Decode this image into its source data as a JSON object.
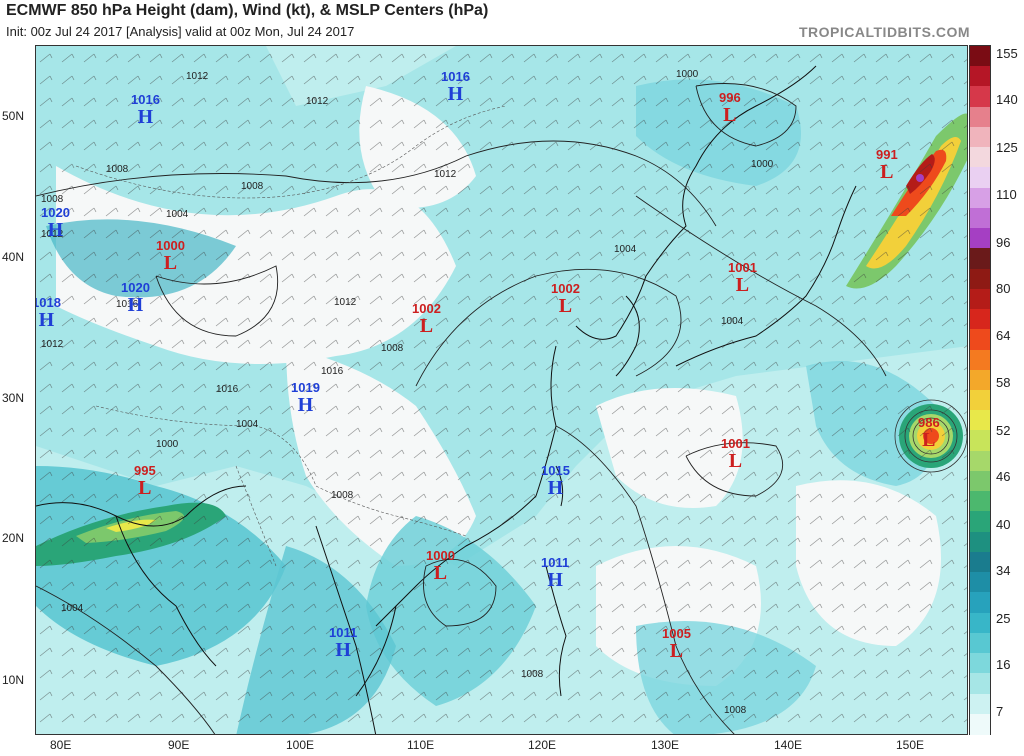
{
  "header": {
    "title": "ECMWF 850 hPa Height (dam), Wind (kt), & MSLP Centers (hPa)",
    "subtitle": "Init: 00z Jul 24 2017   [Analysis]   valid at 00z Mon, Jul 24 2017",
    "brand": "TROPICALTIDBITS.COM"
  },
  "axes": {
    "lat_labels": [
      "50N",
      "40N",
      "30N",
      "20N",
      "10N"
    ],
    "lon_labels": [
      "80E",
      "90E",
      "100E",
      "110E",
      "120E",
      "130E",
      "140E",
      "150E"
    ]
  },
  "colorbar": {
    "labels": [
      "155",
      "140",
      "125",
      "110",
      "96",
      "80",
      "64",
      "58",
      "52",
      "46",
      "40",
      "34",
      "25",
      "16",
      "7"
    ],
    "colors": [
      "#7a0c14",
      "#b51626",
      "#d6384a",
      "#e6808c",
      "#f0b4bc",
      "#f3d8de",
      "#ead0f2",
      "#d7a0e6",
      "#c06fd6",
      "#a53fc3",
      "#6a1a1a",
      "#8e1a14",
      "#b41c18",
      "#d7261c",
      "#ee4a1c",
      "#f47a20",
      "#f3a82a",
      "#f2d03a",
      "#e8e84a",
      "#c8e45a",
      "#a6d86a",
      "#7cc86c",
      "#4cb86e",
      "#2aa578",
      "#1e9080",
      "#1a7c8e",
      "#1e8ea6",
      "#27a2bc",
      "#38b6c8",
      "#58c8d2",
      "#7dd8dc",
      "#a6e6e6",
      "#cdf2f2",
      "#eefafa"
    ]
  },
  "centers": [
    {
      "type": "H",
      "value": "1016"
    },
    {
      "type": "H",
      "value": "1016"
    },
    {
      "type": "H",
      "value": "1020"
    },
    {
      "type": "H",
      "value": "1020"
    },
    {
      "type": "H",
      "value": "1018"
    },
    {
      "type": "H",
      "value": "1019"
    },
    {
      "type": "H",
      "value": "1015"
    },
    {
      "type": "H",
      "value": "1011"
    },
    {
      "type": "H",
      "value": "1011"
    },
    {
      "type": "L",
      "value": "1000"
    },
    {
      "type": "L",
      "value": "995"
    },
    {
      "type": "L",
      "value": "1002"
    },
    {
      "type": "L",
      "value": "1002"
    },
    {
      "type": "L",
      "value": "996"
    },
    {
      "type": "L",
      "value": "991"
    },
    {
      "type": "L",
      "value": "1001"
    },
    {
      "type": "L",
      "value": "1001"
    },
    {
      "type": "L",
      "value": "986"
    },
    {
      "type": "L",
      "value": "1000"
    },
    {
      "type": "L",
      "value": "1005"
    }
  ],
  "contour_labels": [
    "1012",
    "1012",
    "1008",
    "1008",
    "1008",
    "1004",
    "1012",
    "1016",
    "1012",
    "1012",
    "1016",
    "1008",
    "1016",
    "1004",
    "1000",
    "1012",
    "1000",
    "1004",
    "1000",
    "1004",
    "1004",
    "1008",
    "1008",
    "1008"
  ]
}
